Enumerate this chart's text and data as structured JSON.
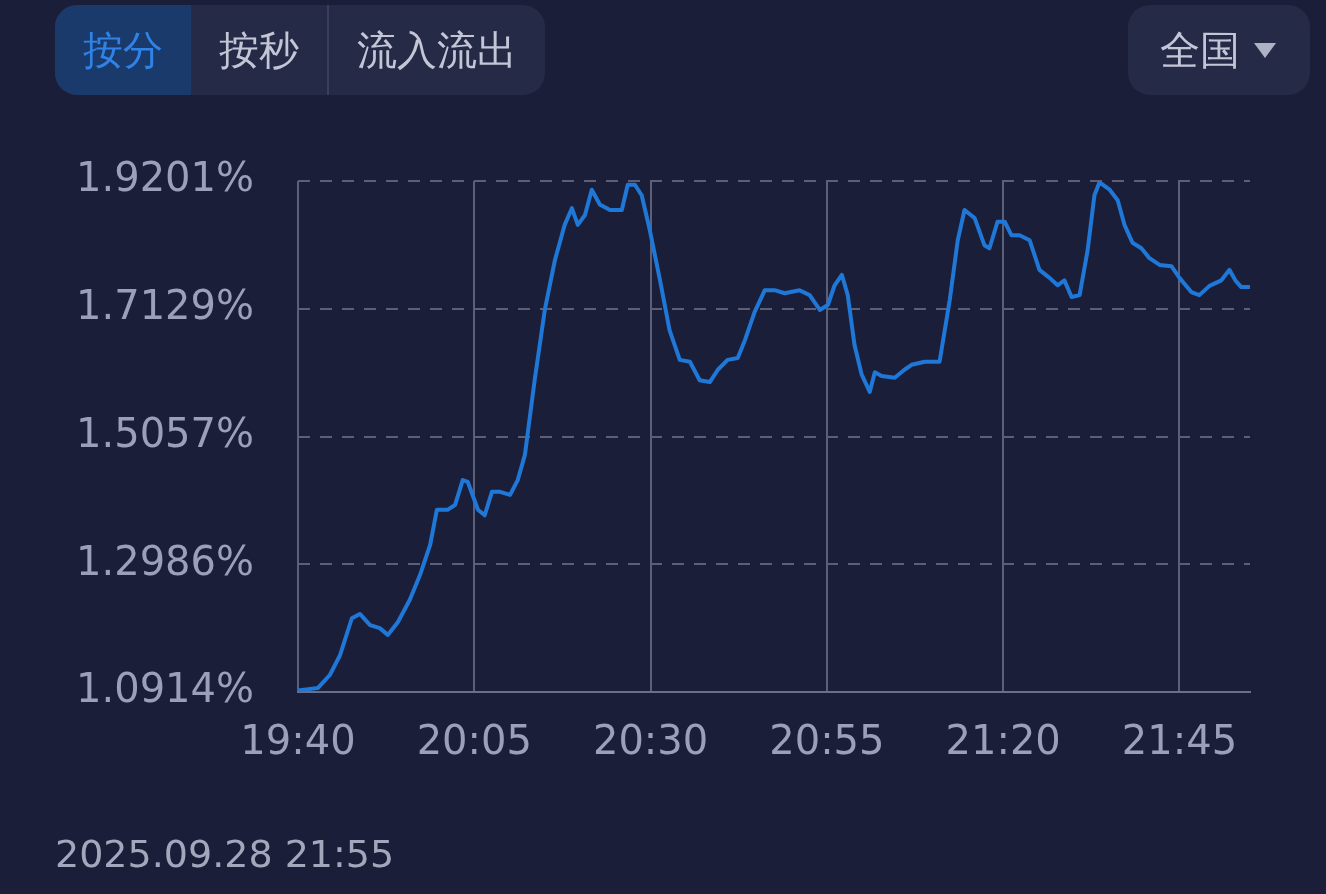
{
  "chart_data": {
    "type": "line",
    "annotations": [
      "按分",
      "按秒",
      "流入流出",
      "全国",
      "2025.09.28 21:55"
    ],
    "xlim": [
      19.6667,
      21.9167
    ],
    "xticks": [
      {
        "value": 19.6667,
        "label": "19:40"
      },
      {
        "value": 20.0833,
        "label": "20:05"
      },
      {
        "value": 20.5,
        "label": "20:30"
      },
      {
        "value": 20.9167,
        "label": "20:55"
      },
      {
        "value": 21.3333,
        "label": "21:20"
      },
      {
        "value": 21.75,
        "label": "21:45"
      }
    ],
    "ylim": [
      1.0914,
      1.9201
    ],
    "yticks": [
      {
        "value": 1.0914,
        "label": "1.0914%"
      },
      {
        "value": 1.2986,
        "label": "1.2986%"
      },
      {
        "value": 1.5057,
        "label": "1.5057%"
      },
      {
        "value": 1.7129,
        "label": "1.7129%"
      },
      {
        "value": 1.9201,
        "label": "1.9201%"
      }
    ],
    "grid": true,
    "marker": "none",
    "line_style": "solid",
    "series": [
      {
        "color": "#1f78d8",
        "x": [
          19.667,
          19.714,
          19.742,
          19.766,
          19.794,
          19.813,
          19.837,
          19.86,
          19.879,
          19.903,
          19.931,
          19.955,
          19.979,
          19.995,
          20.021,
          20.038,
          20.056,
          20.068,
          20.092,
          20.108,
          20.125,
          20.144,
          20.168,
          20.186,
          20.203,
          20.226,
          20.25,
          20.274,
          20.297,
          20.314,
          20.328,
          20.345,
          20.361,
          20.38,
          20.404,
          20.432,
          20.446,
          20.463,
          20.479,
          20.498,
          20.522,
          20.545,
          20.569,
          20.593,
          20.616,
          20.64,
          20.659,
          20.682,
          20.706,
          20.723,
          20.746,
          20.77,
          20.793,
          20.817,
          20.852,
          20.876,
          20.9,
          20.919,
          20.935,
          20.952,
          20.966,
          20.982,
          20.999,
          21.018,
          21.03,
          21.046,
          21.077,
          21.1,
          21.117,
          21.148,
          21.183,
          21.207,
          21.226,
          21.242,
          21.266,
          21.289,
          21.301,
          21.32,
          21.337,
          21.353,
          21.372,
          21.396,
          21.419,
          21.443,
          21.462,
          21.478,
          21.495,
          21.514,
          21.533,
          21.549,
          21.561,
          21.585,
          21.604,
          21.62,
          21.639,
          21.66,
          21.679,
          21.703,
          21.731,
          21.75,
          21.778,
          21.797,
          21.821,
          21.849,
          21.868,
          21.882,
          21.896,
          21.915
        ],
        "values": [
          1.094,
          1.098,
          1.119,
          1.151,
          1.211,
          1.218,
          1.2,
          1.195,
          1.184,
          1.205,
          1.241,
          1.281,
          1.33,
          1.387,
          1.387,
          1.395,
          1.435,
          1.432,
          1.387,
          1.378,
          1.416,
          1.416,
          1.411,
          1.435,
          1.476,
          1.597,
          1.711,
          1.792,
          1.849,
          1.876,
          1.849,
          1.865,
          1.906,
          1.882,
          1.873,
          1.873,
          1.914,
          1.914,
          1.897,
          1.841,
          1.76,
          1.678,
          1.63,
          1.627,
          1.597,
          1.594,
          1.614,
          1.63,
          1.633,
          1.662,
          1.708,
          1.743,
          1.743,
          1.738,
          1.743,
          1.735,
          1.711,
          1.719,
          1.751,
          1.768,
          1.735,
          1.654,
          1.606,
          1.578,
          1.61,
          1.604,
          1.601,
          1.614,
          1.622,
          1.627,
          1.627,
          1.727,
          1.824,
          1.873,
          1.86,
          1.816,
          1.811,
          1.854,
          1.854,
          1.832,
          1.832,
          1.824,
          1.776,
          1.763,
          1.751,
          1.759,
          1.732,
          1.735,
          1.808,
          1.897,
          1.918,
          1.906,
          1.889,
          1.849,
          1.82,
          1.811,
          1.795,
          1.784,
          1.782,
          1.763,
          1.74,
          1.735,
          1.75,
          1.759,
          1.776,
          1.759,
          1.748,
          1.748
        ]
      }
    ]
  }
}
